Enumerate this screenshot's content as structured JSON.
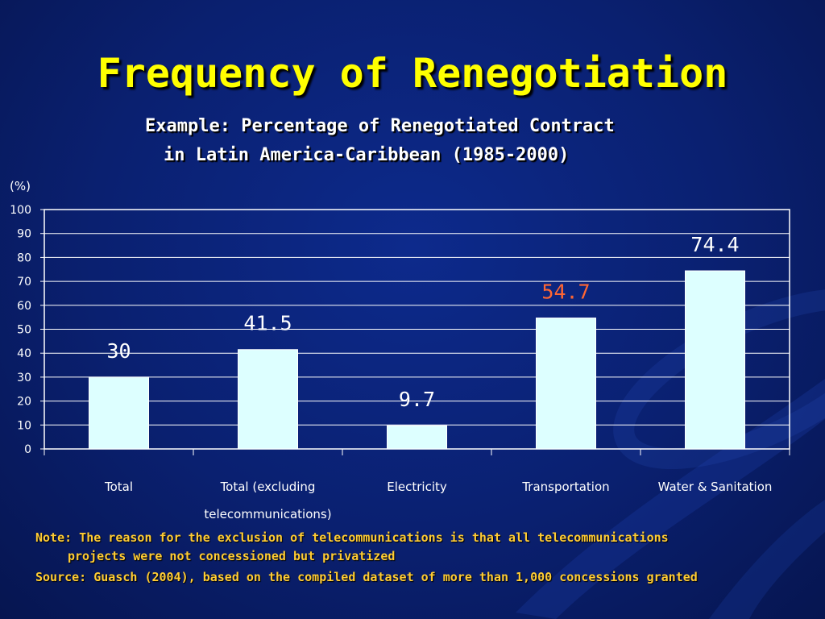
{
  "title": "Frequency of Renegotiation",
  "subtitle_line1": "Example: Percentage of Renegotiated Contract",
  "subtitle_line2": "in Latin America-Caribbean (1985-2000)",
  "unit_label": "(%)",
  "note_line1": "Note: The reason for the exclusion of telecommunications is that all telecommunications",
  "note_line2": "projects were not concessioned but privatized",
  "source": "Source: Guasch (2004), based on the compiled dataset of more than 1,000 concessions granted",
  "colors": {
    "title": "#ffff00",
    "bar_fill": "#ddffff",
    "label_default": "#ffffff",
    "label_highlight": "#ff6633",
    "note": "#ffcc33"
  },
  "chart_data": {
    "type": "bar",
    "categories": [
      [
        "Total"
      ],
      [
        "Total (excluding",
        "telecommunications)"
      ],
      [
        "Electricity"
      ],
      [
        "Transportation"
      ],
      [
        "Water & Sanitation"
      ]
    ],
    "values": [
      30,
      41.5,
      9.7,
      54.7,
      74.4
    ],
    "value_labels": [
      "30",
      "41.5",
      "9.7",
      "54.7",
      "74.4"
    ],
    "highlight_index": 3,
    "ylim": [
      0,
      100
    ],
    "yticks": [
      0,
      10,
      20,
      30,
      40,
      50,
      60,
      70,
      80,
      90,
      100
    ],
    "grid": true
  }
}
